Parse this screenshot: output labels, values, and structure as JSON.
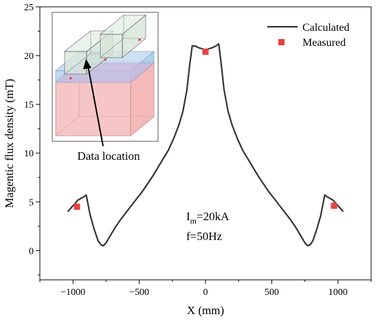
{
  "chart_data": {
    "type": "line",
    "xlabel": "X (mm)",
    "ylabel": "Magentic flux density (mT)",
    "xlim": [
      -1250,
      1250
    ],
    "ylim": [
      -3,
      25
    ],
    "xticks": [
      -1000,
      -500,
      0,
      500,
      1000
    ],
    "xtick_labels": [
      "−1000",
      "−500",
      "0",
      "500",
      "1000"
    ],
    "yticks": [
      0,
      5,
      10,
      15,
      20,
      25
    ],
    "ytick_labels": [
      "0",
      "5",
      "10",
      "15",
      "20",
      "25"
    ],
    "grid": false,
    "legend_position": "top-right",
    "series": [
      {
        "name": "Calculated",
        "kind": "line",
        "color": "#333333",
        "x": [
          -1040,
          -1000,
          -960,
          -920,
          -900,
          -870,
          -840,
          -810,
          -790,
          -770,
          -750,
          -720,
          -680,
          -640,
          -600,
          -560,
          -520,
          -480,
          -440,
          -400,
          -360,
          -320,
          -280,
          -240,
          -200,
          -170,
          -140,
          -120,
          -100,
          -80,
          -50,
          0,
          50,
          80,
          100,
          120,
          140,
          170,
          200,
          240,
          280,
          320,
          360,
          400,
          440,
          480,
          520,
          560,
          600,
          640,
          680,
          720,
          750,
          770,
          790,
          810,
          840,
          870,
          900,
          920,
          960,
          1000,
          1040
        ],
        "y": [
          4.0,
          4.6,
          5.2,
          5.5,
          5.7,
          3.6,
          2.2,
          1.0,
          0.6,
          0.5,
          0.8,
          1.5,
          2.4,
          3.2,
          3.9,
          4.6,
          5.3,
          6.0,
          6.8,
          7.6,
          8.5,
          9.4,
          10.3,
          11.5,
          12.9,
          14.3,
          16.5,
          19.0,
          21.0,
          21.0,
          20.8,
          20.6,
          20.8,
          21.0,
          21.2,
          19.0,
          16.5,
          14.3,
          12.9,
          11.5,
          10.3,
          9.4,
          8.5,
          7.6,
          6.8,
          6.0,
          5.3,
          4.6,
          3.9,
          3.2,
          2.4,
          1.5,
          0.8,
          0.5,
          0.6,
          1.0,
          2.2,
          3.6,
          5.7,
          5.5,
          5.2,
          4.6,
          4.0
        ]
      },
      {
        "name": "Measured",
        "kind": "scatter",
        "color": "#e8413f",
        "x": [
          -970,
          0,
          970
        ],
        "y": [
          4.5,
          20.4,
          4.6
        ]
      }
    ],
    "annotations": {
      "current_base": "I",
      "current_sub": "m",
      "current_rest": "=20kA",
      "frequency": "f=50Hz",
      "inset_label": "Data location"
    }
  }
}
